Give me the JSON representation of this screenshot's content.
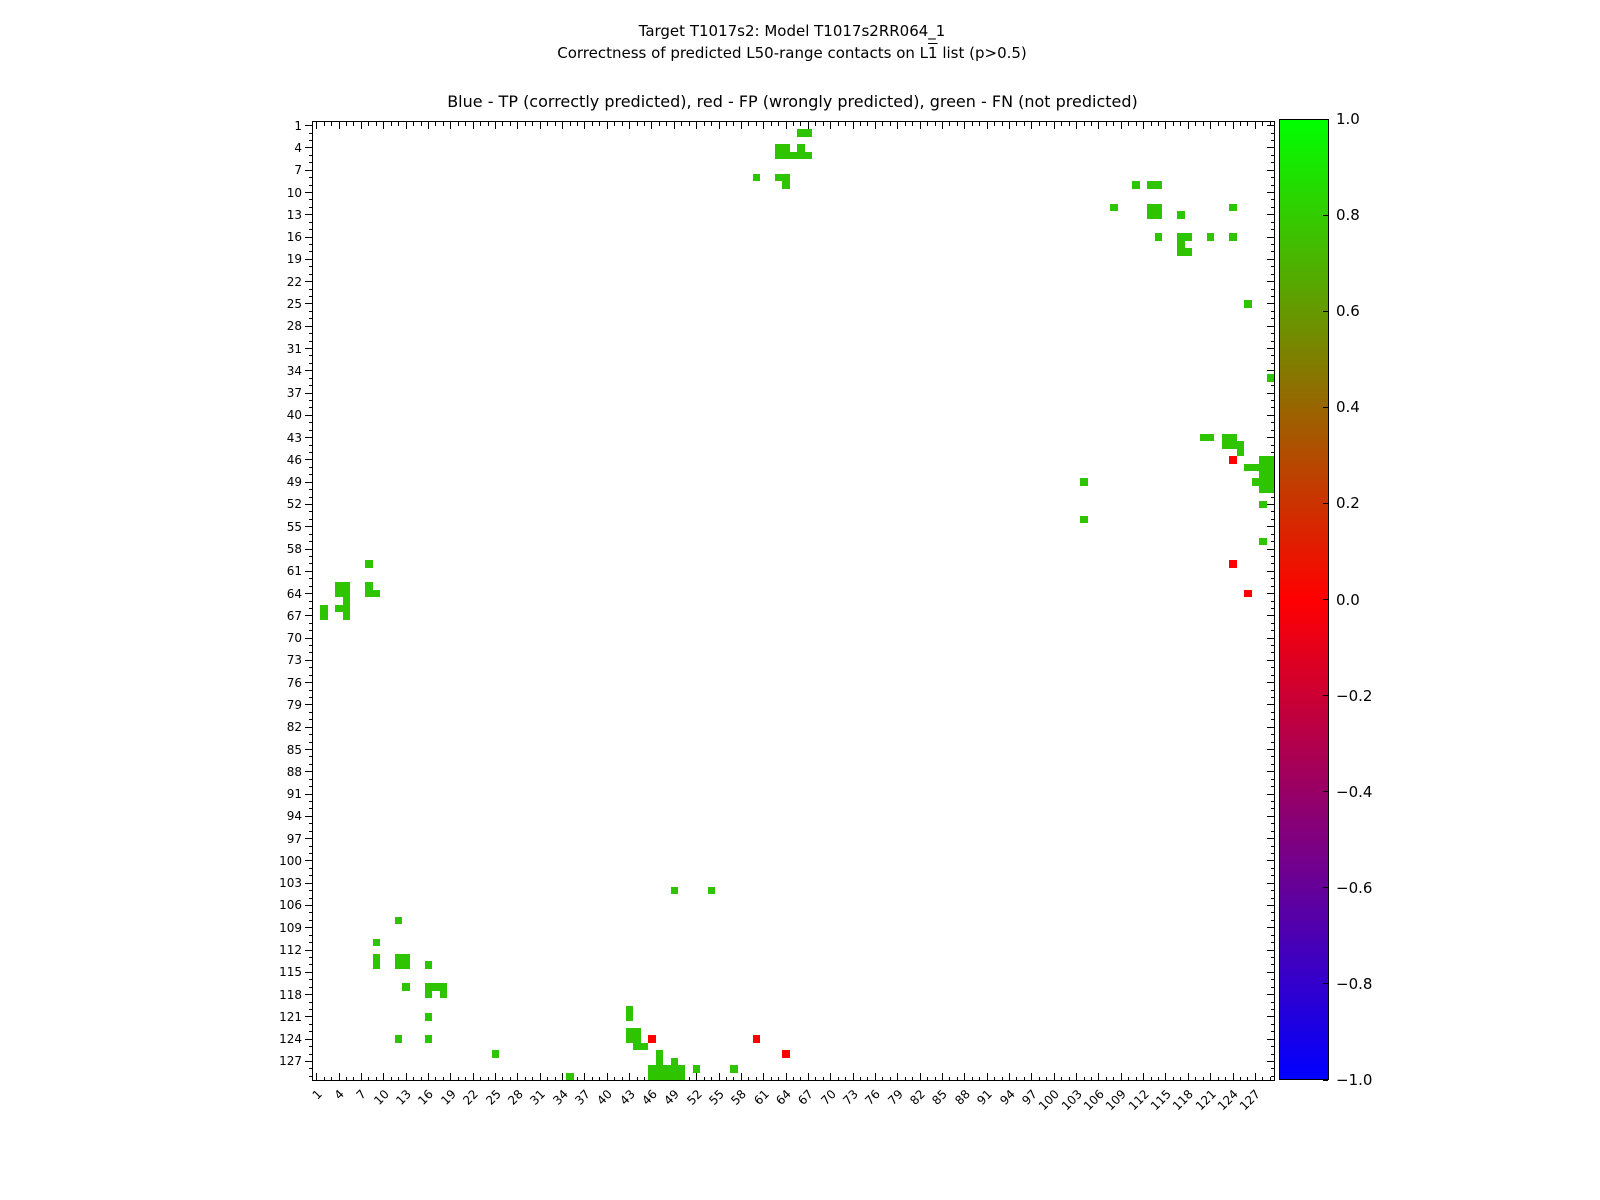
{
  "figure": {
    "suptitle_line1": "Target T1017s2: Model T1017s2RR064_1",
    "suptitle_line2_prefix": "Correctness of predicted L50-range contacts on L",
    "suptitle_line2_overlined": "1",
    "suptitle_line2_suffix": " list (p>0.5)"
  },
  "chart_data": {
    "type": "scatter",
    "subtype": "contact-map-correctness",
    "title": "Blue - TP (correctly predicted), red - FP (wrongly predicted), green - FN (not predicted)",
    "n_residues": 129,
    "axis_range": [
      0.5,
      129.5
    ],
    "grid": false,
    "x_tick_labels": [
      1,
      4,
      7,
      10,
      13,
      16,
      19,
      22,
      25,
      28,
      31,
      34,
      37,
      40,
      43,
      46,
      49,
      52,
      55,
      58,
      61,
      64,
      67,
      70,
      73,
      76,
      79,
      82,
      85,
      88,
      91,
      94,
      97,
      100,
      103,
      106,
      109,
      112,
      115,
      118,
      121,
      124,
      127
    ],
    "y_tick_labels": [
      1,
      4,
      7,
      10,
      13,
      16,
      19,
      22,
      25,
      28,
      31,
      34,
      37,
      40,
      43,
      46,
      49,
      52,
      55,
      58,
      61,
      64,
      67,
      70,
      73,
      76,
      79,
      82,
      85,
      88,
      91,
      94,
      97,
      100,
      103,
      106,
      109,
      112,
      115,
      118,
      121,
      124,
      127
    ],
    "legend": {
      "TP": {
        "color": "#0000ff",
        "meaning": "correctly predicted"
      },
      "FP": {
        "color": "#ff0000",
        "meaning": "wrongly predicted"
      },
      "FN": {
        "color": "#2fc400",
        "meaning": "not predicted"
      }
    },
    "marker_green": "#2fc400",
    "marker_red": "#ff0000",
    "marker_blue": "#0000ff",
    "tp_points_blue": [],
    "fp_points_red": [
      [
        124,
        46
      ],
      [
        124,
        60
      ],
      [
        126,
        64
      ],
      [
        46,
        124
      ],
      [
        60,
        124
      ],
      [
        64,
        126
      ]
    ],
    "fn_points_green": [
      [
        66,
        2
      ],
      [
        67,
        2
      ],
      [
        63,
        4
      ],
      [
        64,
        4
      ],
      [
        66,
        4
      ],
      [
        63,
        5
      ],
      [
        64,
        5
      ],
      [
        65,
        5
      ],
      [
        66,
        5
      ],
      [
        67,
        5
      ],
      [
        60,
        8
      ],
      [
        63,
        8
      ],
      [
        64,
        8
      ],
      [
        64,
        9
      ],
      [
        111,
        9
      ],
      [
        113,
        9
      ],
      [
        114,
        9
      ],
      [
        108,
        12
      ],
      [
        113,
        12
      ],
      [
        114,
        12
      ],
      [
        124,
        12
      ],
      [
        113,
        13
      ],
      [
        114,
        13
      ],
      [
        117,
        13
      ],
      [
        114,
        16
      ],
      [
        117,
        16
      ],
      [
        118,
        16
      ],
      [
        121,
        16
      ],
      [
        124,
        16
      ],
      [
        117,
        17
      ],
      [
        117,
        18
      ],
      [
        118,
        18
      ],
      [
        126,
        25
      ],
      [
        129,
        35
      ],
      [
        120,
        43
      ],
      [
        121,
        43
      ],
      [
        123,
        43
      ],
      [
        124,
        43
      ],
      [
        123,
        44
      ],
      [
        124,
        44
      ],
      [
        125,
        44
      ],
      [
        125,
        45
      ],
      [
        128,
        46
      ],
      [
        129,
        46
      ],
      [
        126,
        47
      ],
      [
        127,
        47
      ],
      [
        128,
        47
      ],
      [
        129,
        47
      ],
      [
        128,
        48
      ],
      [
        129,
        48
      ],
      [
        104,
        49
      ],
      [
        127,
        49
      ],
      [
        128,
        49
      ],
      [
        129,
        49
      ],
      [
        128,
        50
      ],
      [
        129,
        50
      ],
      [
        128,
        52
      ],
      [
        104,
        54
      ],
      [
        128,
        57
      ],
      [
        2,
        66
      ],
      [
        2,
        67
      ],
      [
        4,
        63
      ],
      [
        4,
        64
      ],
      [
        4,
        66
      ],
      [
        5,
        63
      ],
      [
        5,
        64
      ],
      [
        5,
        65
      ],
      [
        5,
        66
      ],
      [
        5,
        67
      ],
      [
        8,
        60
      ],
      [
        8,
        63
      ],
      [
        8,
        64
      ],
      [
        9,
        64
      ],
      [
        9,
        111
      ],
      [
        9,
        113
      ],
      [
        9,
        114
      ],
      [
        12,
        108
      ],
      [
        12,
        113
      ],
      [
        12,
        114
      ],
      [
        12,
        124
      ],
      [
        13,
        113
      ],
      [
        13,
        114
      ],
      [
        13,
        117
      ],
      [
        16,
        114
      ],
      [
        16,
        117
      ],
      [
        16,
        118
      ],
      [
        16,
        121
      ],
      [
        16,
        124
      ],
      [
        17,
        117
      ],
      [
        18,
        117
      ],
      [
        18,
        118
      ],
      [
        25,
        126
      ],
      [
        35,
        129
      ],
      [
        43,
        120
      ],
      [
        43,
        121
      ],
      [
        43,
        123
      ],
      [
        44,
        123
      ],
      [
        43,
        124
      ],
      [
        44,
        124
      ],
      [
        44,
        125
      ],
      [
        45,
        125
      ],
      [
        49,
        104
      ],
      [
        54,
        104
      ],
      [
        47,
        126
      ],
      [
        47,
        127
      ],
      [
        49,
        127
      ],
      [
        46,
        128
      ],
      [
        47,
        128
      ],
      [
        48,
        128
      ],
      [
        49,
        128
      ],
      [
        50,
        128
      ],
      [
        52,
        128
      ],
      [
        57,
        128
      ],
      [
        46,
        129
      ],
      [
        47,
        129
      ],
      [
        48,
        129
      ],
      [
        49,
        129
      ],
      [
        50,
        129
      ]
    ],
    "colorbar": {
      "position": "right",
      "tick_labels": [
        "1.0",
        "0.8",
        "0.6",
        "0.4",
        "0.2",
        "0.0",
        "−0.2",
        "−0.4",
        "−0.6",
        "−0.8",
        "−1.0"
      ],
      "tick_values": [
        1.0,
        0.8,
        0.6,
        0.4,
        0.2,
        0.0,
        -0.2,
        -0.4,
        -0.6,
        -0.8,
        -1.0
      ],
      "colormap": "brg_r",
      "gradient_stops": [
        "#00ff00",
        "#7f7f00",
        "#ff0000",
        "#7f007f",
        "#0000ff"
      ]
    }
  }
}
